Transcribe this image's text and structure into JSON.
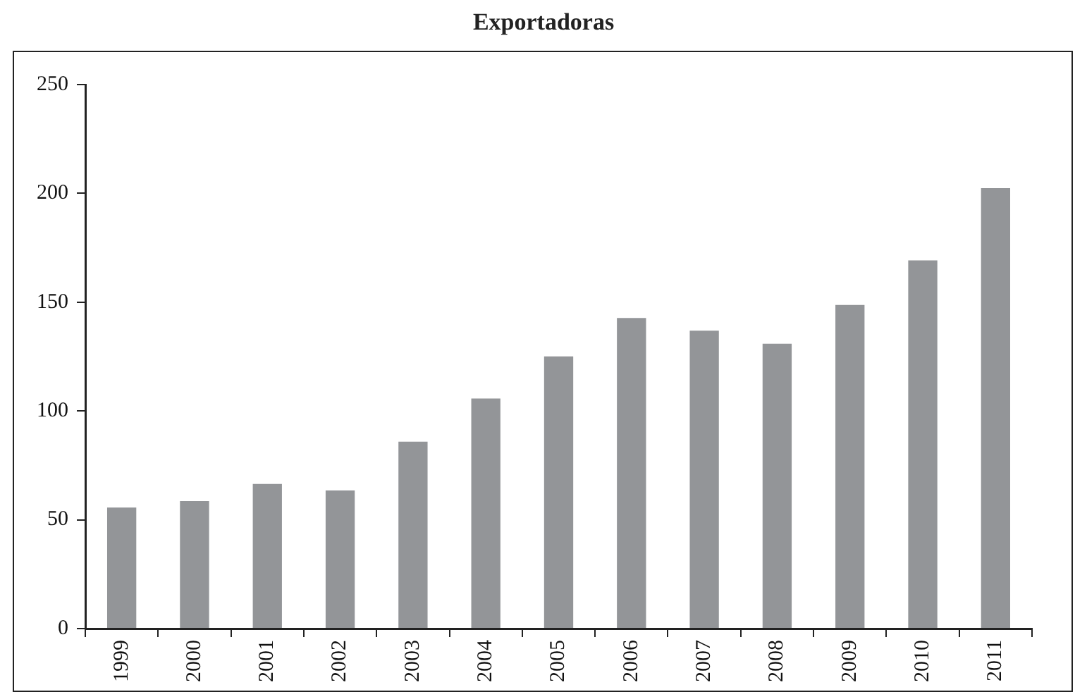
{
  "chart_data": {
    "type": "bar",
    "title": "Exportadoras",
    "categories": [
      "1999",
      "2000",
      "2001",
      "2002",
      "2003",
      "2004",
      "2005",
      "2006",
      "2007",
      "2008",
      "2009",
      "2010",
      "2011"
    ],
    "values": [
      55.6,
      58.6,
      66.5,
      63.5,
      85.9,
      105.7,
      125.1,
      142.7,
      136.9,
      130.9,
      148.7,
      169.2,
      202.4
    ],
    "color": "#939598",
    "ylim": [
      0,
      250
    ],
    "yticks": [
      0,
      50,
      100,
      150,
      200,
      250
    ],
    "grid": false,
    "legend": false
  }
}
